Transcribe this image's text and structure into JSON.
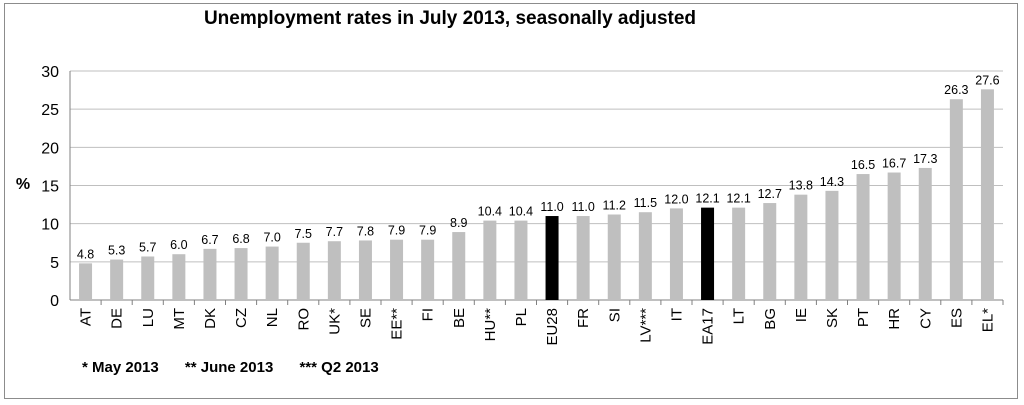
{
  "chart_data": {
    "type": "bar",
    "title": "Unemployment rates in July 2013, seasonally adjusted",
    "ylabel": "%",
    "xlabel": "",
    "ylim": [
      0,
      30
    ],
    "yticks": [
      0,
      5,
      10,
      15,
      20,
      25,
      30
    ],
    "categories": [
      "AT",
      "DE",
      "LU",
      "MT",
      "DK",
      "CZ",
      "NL",
      "RO",
      "UK*",
      "SE",
      "EE**",
      "FI",
      "BE",
      "HU**",
      "PL",
      "EU28",
      "FR",
      "SI",
      "LV***",
      "IT",
      "EA17",
      "LT",
      "BG",
      "IE",
      "SK",
      "PT",
      "HR",
      "CY",
      "ES",
      "EL*"
    ],
    "values": [
      4.8,
      5.3,
      5.7,
      6.0,
      6.7,
      6.8,
      7.0,
      7.5,
      7.7,
      7.8,
      7.9,
      7.9,
      8.9,
      10.4,
      10.4,
      11.0,
      11.0,
      11.2,
      11.5,
      12.0,
      12.1,
      12.1,
      12.7,
      13.8,
      14.3,
      16.5,
      16.7,
      17.3,
      26.3,
      27.6
    ],
    "value_labels": [
      "4.8",
      "5.3",
      "5.7",
      "6.0",
      "6.7",
      "6.8",
      "7.0",
      "7.5",
      "7.7",
      "7.8",
      "7.9",
      "7.9",
      "8.9",
      "10.4",
      "10.4",
      "11.0",
      "11.0",
      "11.2",
      "11.5",
      "12.0",
      "12.1",
      "12.1",
      "12.7",
      "13.8",
      "14.3",
      "16.5",
      "16.7",
      "17.3",
      "26.3",
      "27.6"
    ],
    "highlighted_categories": [
      "EU28",
      "EA17"
    ],
    "bar_color": "#bfbfbf",
    "highlight_color": "#000000",
    "grid": true,
    "grid_color": "#bfbfbf"
  },
  "footnotes": {
    "note1": "* May 2013",
    "note2": "** June 2013",
    "note3": "*** Q2 2013"
  }
}
